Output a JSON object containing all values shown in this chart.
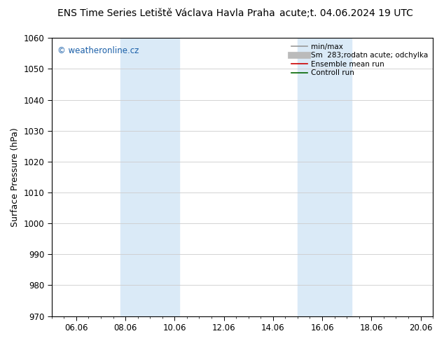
{
  "title_left": "ENS Time Series Letiště Václava Havla Praha",
  "title_right": "acute;t. 04.06.2024 19 UTC",
  "ylabel": "Surface Pressure (hPa)",
  "ylim": [
    970,
    1060
  ],
  "yticks": [
    970,
    980,
    990,
    1000,
    1010,
    1020,
    1030,
    1040,
    1050,
    1060
  ],
  "xlim_days": [
    5.0,
    20.5
  ],
  "xtick_positions_days": [
    6,
    8,
    10,
    12,
    14,
    16,
    18,
    20
  ],
  "xtick_labels": [
    "06.06",
    "08.06",
    "10.06",
    "12.06",
    "14.06",
    "16.06",
    "18.06",
    "20.06"
  ],
  "shaded_regions": [
    {
      "xmin": 7.8,
      "xmax": 10.2,
      "color": "#daeaf7"
    },
    {
      "xmin": 15.0,
      "xmax": 17.2,
      "color": "#daeaf7"
    }
  ],
  "watermark_text": "© weatheronline.cz",
  "watermark_color": "#1a5fa8",
  "legend_entries": [
    {
      "label": "min/max",
      "color": "#999999",
      "linestyle": "-",
      "linewidth": 1.2
    },
    {
      "label": "Sm  283;rodatn acute; odchylka",
      "color": "#bbbbbb",
      "linestyle": "-",
      "linewidth": 7
    },
    {
      "label": "Ensemble mean run",
      "color": "#cc0000",
      "linestyle": "-",
      "linewidth": 1.2
    },
    {
      "label": "Controll run",
      "color": "#006600",
      "linestyle": "-",
      "linewidth": 1.2
    }
  ],
  "bg_color": "#ffffff",
  "grid_color": "#cccccc",
  "border_color": "#000000",
  "title_fontsize": 10,
  "tick_fontsize": 8.5,
  "ylabel_fontsize": 9
}
